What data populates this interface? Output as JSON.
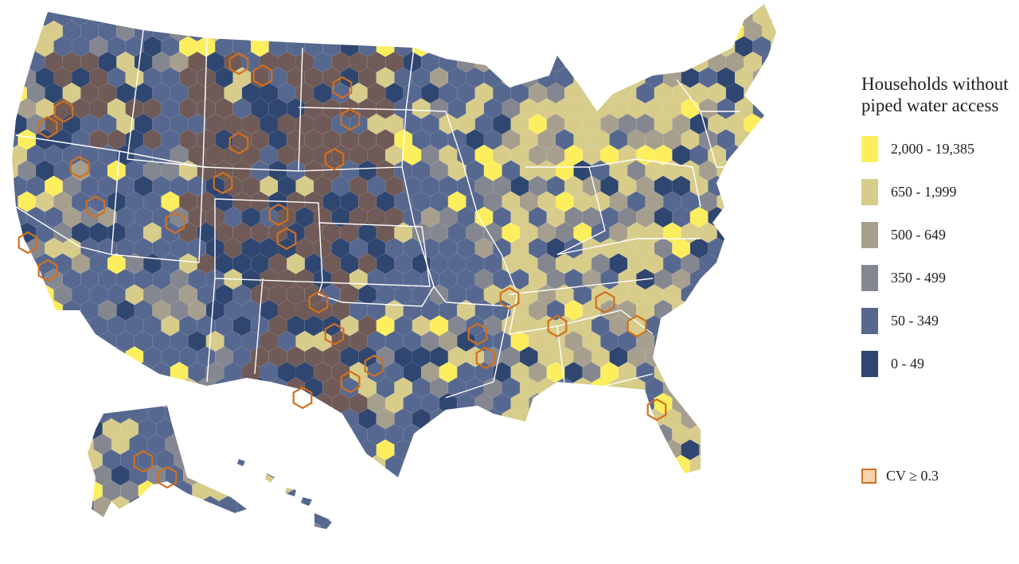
{
  "legend": {
    "title_line1": "Households without",
    "title_line2": "piped water access",
    "classes": [
      {
        "label": "2,000 - 19,385",
        "color": "#fdee5e"
      },
      {
        "label": "650 - 1,999",
        "color": "#d7cc8a"
      },
      {
        "label": "500 - 649",
        "color": "#a69f8e"
      },
      {
        "label": "350 - 499",
        "color": "#858790"
      },
      {
        "label": "50 - 349",
        "color": "#56688f"
      },
      {
        "label": "0 - 49",
        "color": "#2f4670"
      }
    ]
  },
  "cv_legend": {
    "label": "CV ≥ 0.3",
    "fill": "#f6d2b0",
    "stroke": "#d0701e"
  },
  "colors": {
    "brown_zone": "#6f5a57",
    "borders": "#ffffff",
    "background": "#ffffff"
  }
}
